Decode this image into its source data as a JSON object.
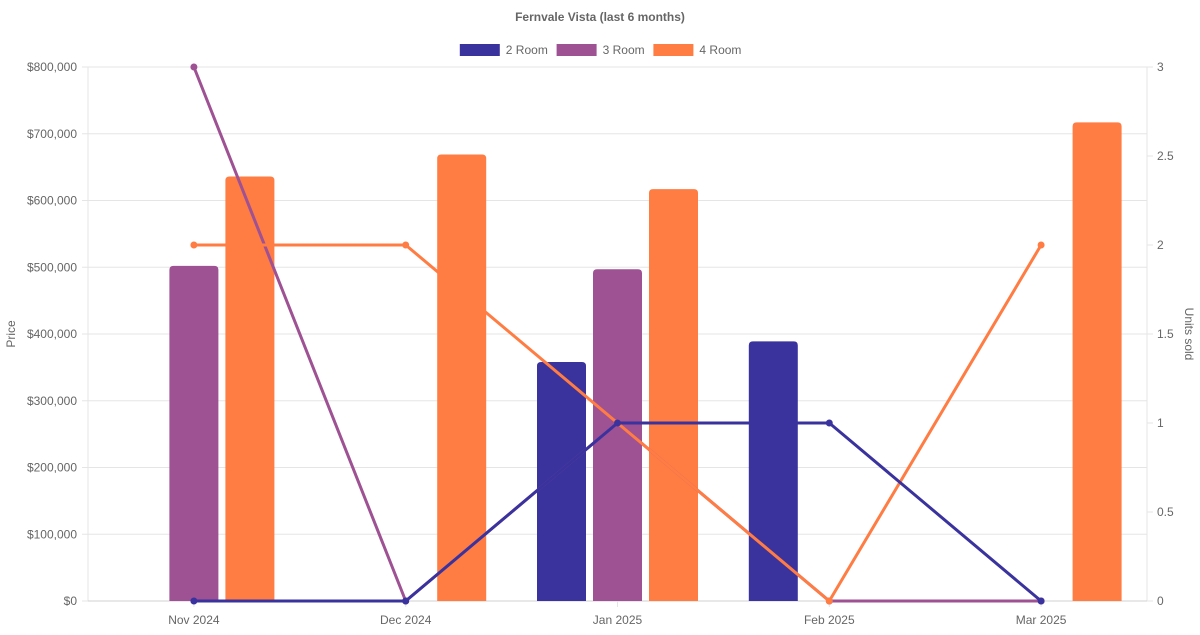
{
  "chart_data": {
    "type": "bar",
    "title": "Fernvale Vista (last 6 months)",
    "categories": [
      "Nov 2024",
      "Dec 2024",
      "Jan 2025",
      "Feb 2025",
      "Mar 2025"
    ],
    "y_left": {
      "label": "Price",
      "range": [
        0,
        800000
      ],
      "ticks": [
        0,
        100000,
        200000,
        300000,
        400000,
        500000,
        600000,
        700000,
        800000
      ],
      "tick_labels": [
        "$0",
        "$100,000",
        "$200,000",
        "$300,000",
        "$400,000",
        "$500,000",
        "$600,000",
        "$700,000",
        "$800,000"
      ]
    },
    "y_right": {
      "label": "Units sold",
      "range": [
        0,
        3
      ],
      "ticks": [
        0,
        0.5,
        1,
        1.5,
        2,
        2.5,
        3
      ],
      "tick_labels": [
        "0",
        "0.5",
        "1",
        "1.5",
        "2",
        "2.5",
        "3"
      ]
    },
    "grid": true,
    "legend_position": "top-center",
    "series": [
      {
        "name": "2 Room",
        "color": "#3a339e",
        "price": [
          null,
          null,
          358000,
          389000,
          null
        ],
        "units_sold": [
          0,
          0,
          1,
          1,
          0
        ]
      },
      {
        "name": "3 Room",
        "color": "#9e5193",
        "price": [
          502000,
          null,
          497000,
          null,
          null
        ],
        "units_sold": [
          3,
          0,
          1,
          0,
          0
        ]
      },
      {
        "name": "4 Room",
        "color": "#ff7c43",
        "price": [
          636000,
          669000,
          617000,
          null,
          717000
        ],
        "units_sold": [
          2,
          2,
          1,
          0,
          2
        ]
      }
    ]
  }
}
